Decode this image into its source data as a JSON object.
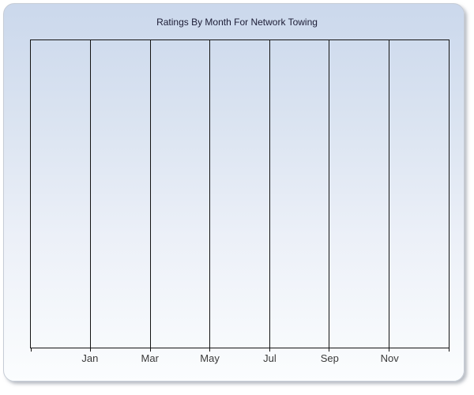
{
  "window": {
    "title": "Ratings By Month For Network Towing"
  },
  "chart_data": {
    "type": "line",
    "title": "Ratings By Month For Network Towing",
    "categories": [
      "Jan",
      "Mar",
      "May",
      "Jul",
      "Sep",
      "Nov"
    ],
    "series": [],
    "values": [],
    "xlabel": "",
    "ylabel": "",
    "x_axis": {
      "tick_labels": [
        "Jan",
        "Mar",
        "May",
        "Jul",
        "Sep",
        "Nov"
      ],
      "total_columns": 7,
      "labeled_line_positions": [
        1,
        2,
        3,
        4,
        5,
        6
      ]
    },
    "y_axis": {
      "tick_labels": []
    },
    "grid": {
      "vertical": true,
      "horizontal": false
    },
    "legend": null
  },
  "colors": {
    "panel_gradient_top": "#cbd8ec",
    "panel_gradient_bottom": "#fbfdfe",
    "panel_border": "#c6ccd6",
    "grid_line": "#141414",
    "title_text": "#1c1c35",
    "axis_label_text": "#3a3a3a"
  }
}
